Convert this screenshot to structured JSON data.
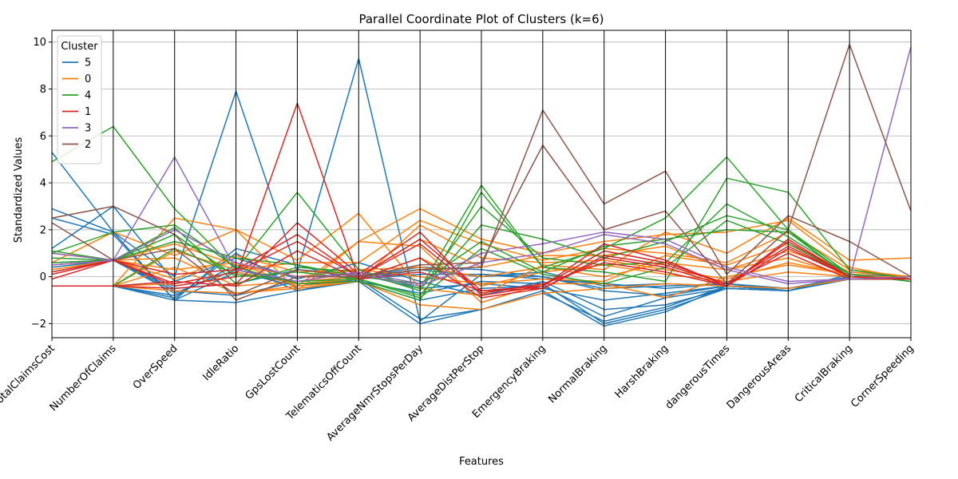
{
  "chart_data": {
    "type": "line",
    "subtype": "parallel-coordinates",
    "title": "Parallel Coordinate Plot of Clusters (k=6)",
    "xlabel": "Features",
    "ylabel": "Standardized Values",
    "ylim": [
      -2.6,
      10.5
    ],
    "yticks": [
      -2,
      0,
      2,
      4,
      6,
      8,
      10
    ],
    "grid": true,
    "legend_title": "Cluster",
    "legend_position": "top-left",
    "categories": [
      "TotalClaimsCost",
      "NumberOfClaims",
      "OverSpeed",
      "IdleRatio",
      "GpsLostCount",
      "TelematicsOffCount",
      "AverageNmrStopsPerDay",
      "AverageDistPerStop",
      "EmergencyBraking",
      "NormalBraking",
      "HarshBraking",
      "dangerousTimes",
      "DangerousAreas",
      "CriticalBraking",
      "CornerSpeeding"
    ],
    "series": [
      {
        "name": "5",
        "color": "#1f77b4",
        "lines": [
          [
            5.3,
            1.9,
            0.0,
            7.9,
            0.2,
            9.3,
            -1.9,
            0.1,
            0.0,
            -0.5,
            -0.4,
            -0.3,
            -0.5,
            0.0,
            -0.1
          ],
          [
            2.9,
            1.9,
            -1.0,
            1.2,
            0.5,
            -0.2,
            -2.0,
            -1.4,
            -0.6,
            -2.1,
            -1.5,
            -0.4,
            -0.6,
            -0.1,
            -0.1
          ],
          [
            2.5,
            1.8,
            -1.0,
            -1.1,
            -0.6,
            -0.1,
            -1.8,
            -1.4,
            -0.7,
            -1.9,
            -1.3,
            -0.4,
            -0.6,
            -0.1,
            -0.1
          ],
          [
            1.2,
            3.0,
            -0.2,
            0.8,
            -0.1,
            0.6,
            -0.2,
            -0.8,
            -0.2,
            -1.4,
            -1.2,
            -0.5,
            -0.6,
            0.1,
            0.0
          ],
          [
            0.4,
            0.7,
            -0.7,
            0.3,
            -0.3,
            -0.1,
            0.3,
            0.0,
            0.2,
            -0.4,
            -0.3,
            -0.4,
            -0.5,
            0.0,
            0.0
          ],
          [
            -0.4,
            -0.4,
            -0.9,
            1.0,
            -0.5,
            -0.2,
            -1.0,
            -0.5,
            -0.4,
            -1.7,
            -0.9,
            -0.5,
            -0.6,
            -0.1,
            -0.1
          ],
          [
            -0.4,
            -0.4,
            -1.0,
            0.2,
            -0.4,
            -0.1,
            0.1,
            0.1,
            -0.1,
            -0.3,
            -0.5,
            -0.3,
            -0.6,
            0.0,
            0.0
          ],
          [
            0.6,
            0.7,
            -0.5,
            -0.3,
            0.3,
            0.1,
            -0.5,
            -0.3,
            -0.5,
            -1.0,
            -0.7,
            -0.4,
            -0.5,
            -0.1,
            -0.1
          ],
          [
            -0.4,
            -0.4,
            -0.8,
            0.5,
            -0.6,
            -0.2,
            -0.7,
            -0.2,
            -0.3,
            -2.0,
            -1.4,
            -0.5,
            -0.6,
            -0.1,
            -0.1
          ],
          [
            0.2,
            0.7,
            -0.6,
            -0.8,
            -0.2,
            0.0,
            0.4,
            0.3,
            0.0,
            -0.6,
            -0.8,
            -0.4,
            -0.6,
            0.0,
            0.0
          ]
        ]
      },
      {
        "name": "0",
        "color": "#ff7f0e",
        "lines": [
          [
            -0.4,
            -0.4,
            2.5,
            2.0,
            0.7,
            2.7,
            -0.5,
            -0.8,
            0.5,
            0.3,
            1.9,
            1.0,
            2.5,
            0.7,
            0.8
          ],
          [
            0.6,
            1.9,
            0.9,
            2.0,
            -0.6,
            1.5,
            2.9,
            1.6,
            1.0,
            1.5,
            1.8,
            1.9,
            2.4,
            0.4,
            -0.1
          ],
          [
            0.3,
            0.7,
            0.3,
            0.6,
            -0.4,
            1.5,
            1.3,
            -1.1,
            -0.3,
            -0.3,
            -0.9,
            0.0,
            0.5,
            0.1,
            -0.1
          ],
          [
            -0.4,
            -0.4,
            -0.6,
            -0.7,
            -0.5,
            -0.2,
            -1.2,
            -1.4,
            -0.7,
            -0.5,
            -0.3,
            -0.4,
            -0.5,
            -0.1,
            -0.1
          ],
          [
            -0.4,
            -0.4,
            1.1,
            0.3,
            0.6,
            0.6,
            2.4,
            1.4,
            0.7,
            1.2,
            1.0,
            0.6,
            1.9,
            0.3,
            0.0
          ],
          [
            1.0,
            0.7,
            0.8,
            -0.4,
            -0.2,
            0.0,
            1.6,
            0.4,
            0.9,
            0.9,
            1.3,
            0.3,
            1.1,
            0.2,
            0.0
          ],
          [
            -0.4,
            -0.4,
            -0.3,
            0.2,
            -0.3,
            -0.1,
            0.8,
            -0.4,
            0.2,
            0.5,
            0.1,
            -0.2,
            0.2,
            0.0,
            -0.1
          ],
          [
            0.5,
            0.7,
            -0.1,
            0.9,
            0.2,
            0.3,
            0.4,
            0.0,
            0.4,
            0.0,
            0.6,
            0.3,
            0.8,
            0.0,
            0.0
          ],
          [
            -0.4,
            -0.4,
            0.4,
            -0.7,
            -0.4,
            -0.2,
            2.2,
            0.8,
            0.6,
            0.7,
            0.3,
            -0.1,
            0.6,
            0.1,
            -0.1
          ],
          [
            0.2,
            0.7,
            1.4,
            0.5,
            0.0,
            0.3,
            0.0,
            -0.3,
            -0.1,
            -0.2,
            0.9,
            0.5,
            1.4,
            0.2,
            0.0
          ]
        ]
      },
      {
        "name": "4",
        "color": "#2ca02c",
        "lines": [
          [
            4.9,
            6.4,
            2.9,
            0.3,
            3.6,
            0.3,
            -0.5,
            3.9,
            0.4,
            1.2,
            2.5,
            5.1,
            2.0,
            -0.1,
            -0.1
          ],
          [
            1.0,
            1.9,
            2.2,
            0.4,
            -0.3,
            -0.2,
            -1.0,
            3.6,
            0.4,
            0.2,
            -0.2,
            4.2,
            3.6,
            0.3,
            -0.1
          ],
          [
            0.6,
            0.7,
            1.8,
            0.0,
            0.2,
            -0.1,
            -0.8,
            2.2,
            1.6,
            0.8,
            1.5,
            2.6,
            2.0,
            0.1,
            -0.2
          ],
          [
            0.8,
            0.7,
            1.5,
            0.8,
            0.5,
            0.0,
            -0.3,
            1.5,
            0.2,
            1.3,
            1.6,
            2.0,
            1.9,
            0.0,
            -0.1
          ],
          [
            1.1,
            0.7,
            2.1,
            -0.3,
            0.4,
            0.2,
            -0.6,
            3.0,
            0.8,
            0.5,
            0.6,
            3.1,
            1.7,
            0.1,
            -0.2
          ],
          [
            -0.4,
            -0.4,
            1.2,
            0.1,
            -0.2,
            -0.1,
            -0.9,
            1.2,
            0.1,
            -0.3,
            0.4,
            2.4,
            1.4,
            0.0,
            -0.1
          ]
        ]
      },
      {
        "name": "1",
        "color": "#d62728",
        "lines": [
          [
            -0.1,
            0.7,
            -0.4,
            0.0,
            7.4,
            -0.1,
            0.2,
            -0.6,
            -0.5,
            0.8,
            0.4,
            -0.4,
            1.5,
            0.0,
            -0.1
          ],
          [
            -0.4,
            -0.4,
            -0.5,
            -0.3,
            2.3,
            0.1,
            1.9,
            -0.8,
            -0.4,
            1.1,
            0.6,
            -0.3,
            1.3,
            0.0,
            -0.1
          ],
          [
            0.2,
            0.7,
            0.1,
            0.3,
            1.8,
            0.0,
            1.4,
            -0.7,
            -0.3,
            0.6,
            0.2,
            -0.4,
            1.2,
            0.0,
            -0.1
          ],
          [
            -0.4,
            -0.4,
            -0.2,
            -0.4,
            1.1,
            -0.1,
            0.8,
            -0.9,
            -0.5,
            0.9,
            0.5,
            -0.3,
            1.0,
            -0.1,
            -0.1
          ],
          [
            0.1,
            0.7,
            -0.3,
            0.2,
            1.5,
            0.0,
            1.6,
            -0.6,
            -0.4,
            1.4,
            0.7,
            -0.4,
            1.6,
            0.0,
            -0.1
          ]
        ]
      },
      {
        "name": "3",
        "color": "#9467bd",
        "lines": [
          [
            1.0,
            0.7,
            5.1,
            0.3,
            -0.2,
            0.2,
            -0.3,
            1.0,
            1.4,
            1.9,
            1.6,
            0.4,
            -0.2,
            -0.1,
            9.8
          ],
          [
            0.5,
            0.7,
            2.0,
            0.6,
            0.0,
            0.1,
            -0.4,
            0.6,
            1.0,
            1.8,
            1.4,
            0.3,
            -0.3,
            -0.1,
            0.0
          ]
        ]
      },
      {
        "name": "2",
        "color": "#8c564b",
        "lines": [
          [
            2.5,
            3.0,
            1.8,
            -1.0,
            0.0,
            0.0,
            0.3,
            0.4,
            7.1,
            3.1,
            4.5,
            0.1,
            2.6,
            1.5,
            0.0
          ],
          [
            2.3,
            0.7,
            1.2,
            -0.8,
            0.3,
            0.0,
            0.5,
            0.6,
            5.6,
            2.0,
            2.8,
            -0.3,
            2.0,
            9.9,
            2.8
          ]
        ]
      }
    ]
  }
}
